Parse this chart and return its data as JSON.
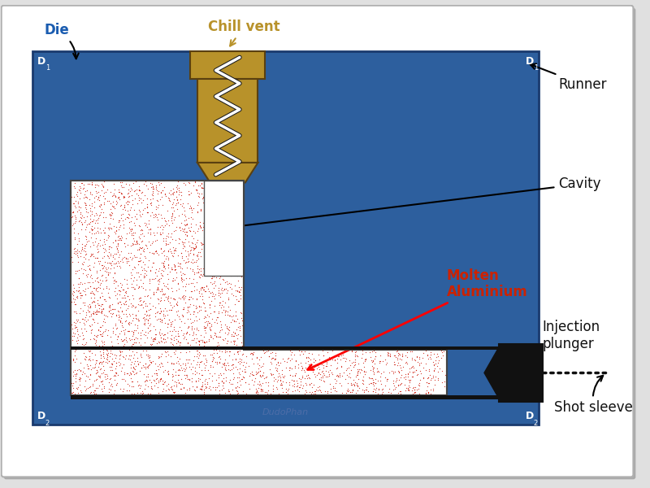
{
  "fig_bg": "#e0e0e0",
  "panel_bg": "#ffffff",
  "die_color": "#2d5f9e",
  "die_edge": "#1a3a6e",
  "chill_color": "#b8922a",
  "chill_edge": "#5a4010",
  "white": "#ffffff",
  "dark": "#111111",
  "dot_color": "#cc1100",
  "runner_label_color": "#111111",
  "die_label_color": "#1a5cb0",
  "chill_label_color": "#b8922a",
  "molten_label_color": "#cc2200",
  "watermark": "DudoPhan",
  "label_die": "Die",
  "label_chill": "Chill vent",
  "label_runner": "Runner",
  "label_cavity": "Cavity",
  "label_molten": "Molten\nAluminium",
  "label_plunger": "Injection\nplunger",
  "label_shot": "Shot sleeve"
}
